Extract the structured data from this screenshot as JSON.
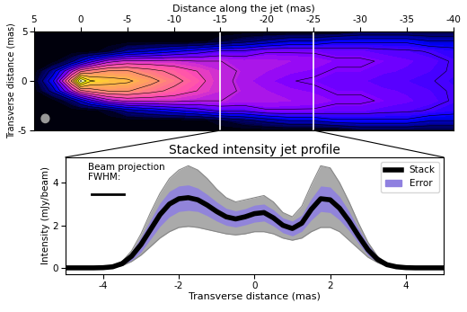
{
  "chart_data": [
    {
      "type": "heatmap",
      "xlabel": "Distance along the jet (mas)",
      "ylabel": "Transverse distance (mas)",
      "x": [
        5,
        3,
        1,
        0,
        -1,
        -3,
        -5,
        -7.5,
        -10,
        -12.5,
        -15,
        -17.5,
        -20,
        -22.5,
        -25,
        -27.5,
        -30,
        -32.5,
        -35,
        -37.5,
        -40
      ],
      "y": [
        -5,
        -4,
        -3,
        -2,
        -1,
        0,
        1,
        2,
        3,
        4,
        5
      ],
      "cells": [
        [
          0,
          0,
          0,
          0,
          0,
          0,
          0,
          0,
          0,
          0,
          0,
          0,
          0,
          0,
          0,
          0,
          0.05,
          0.05,
          0.05,
          0.05,
          0.05
        ],
        [
          0,
          0,
          0,
          0,
          0,
          0,
          0,
          0,
          0,
          0,
          0.05,
          0.1,
          0.15,
          0.2,
          0.2,
          0.25,
          0.25,
          0.25,
          0.25,
          0.2,
          0.2
        ],
        [
          0,
          0,
          0,
          0,
          0,
          0.05,
          0.15,
          0.2,
          0.25,
          0.3,
          0.35,
          0.35,
          0.4,
          0.4,
          0.4,
          0.38,
          0.38,
          0.36,
          0.35,
          0.33,
          0.3
        ],
        [
          0,
          0,
          0.1,
          0.2,
          0.3,
          0.45,
          0.5,
          0.5,
          0.5,
          0.48,
          0.48,
          0.46,
          0.46,
          0.45,
          0.44,
          0.42,
          0.42,
          0.4,
          0.38,
          0.36,
          0.33
        ],
        [
          0,
          0.15,
          0.45,
          0.6,
          0.65,
          0.7,
          0.7,
          0.65,
          0.6,
          0.55,
          0.5,
          0.47,
          0.45,
          0.43,
          0.42,
          0.4,
          0.4,
          0.38,
          0.37,
          0.35,
          0.33
        ],
        [
          0.02,
          0.25,
          0.7,
          1.0,
          0.85,
          0.8,
          0.78,
          0.72,
          0.65,
          0.58,
          0.5,
          0.46,
          0.43,
          0.41,
          0.4,
          0.38,
          0.38,
          0.36,
          0.35,
          0.34,
          0.32
        ],
        [
          0,
          0.15,
          0.45,
          0.6,
          0.65,
          0.7,
          0.7,
          0.65,
          0.6,
          0.55,
          0.5,
          0.47,
          0.45,
          0.43,
          0.42,
          0.4,
          0.4,
          0.38,
          0.37,
          0.35,
          0.33
        ],
        [
          0,
          0,
          0.1,
          0.2,
          0.3,
          0.45,
          0.5,
          0.5,
          0.5,
          0.48,
          0.48,
          0.46,
          0.46,
          0.45,
          0.44,
          0.42,
          0.42,
          0.4,
          0.38,
          0.36,
          0.33
        ],
        [
          0,
          0,
          0,
          0,
          0,
          0.05,
          0.15,
          0.2,
          0.25,
          0.3,
          0.35,
          0.35,
          0.4,
          0.4,
          0.4,
          0.38,
          0.38,
          0.36,
          0.35,
          0.33,
          0.3
        ],
        [
          0,
          0,
          0,
          0,
          0,
          0,
          0,
          0,
          0,
          0,
          0.05,
          0.1,
          0.15,
          0.2,
          0.2,
          0.25,
          0.25,
          0.25,
          0.25,
          0.2,
          0.2
        ],
        [
          0,
          0,
          0,
          0,
          0,
          0,
          0,
          0,
          0,
          0,
          0,
          0,
          0,
          0,
          0,
          0,
          0.05,
          0.05,
          0.05,
          0.05,
          0.05
        ]
      ],
      "xlim": [
        5,
        -40
      ],
      "xticks": [
        5,
        0,
        -5,
        -10,
        -15,
        -20,
        -25,
        -30,
        -35,
        -40
      ],
      "ylim": [
        -5,
        5
      ],
      "yticks": [
        -5,
        0,
        5
      ],
      "beam_fwhm": 0.85,
      "slice": [
        -15,
        -25
      ]
    },
    {
      "type": "line",
      "title": "Stacked intensity jet profile",
      "xlabel": "Transverse distance (mas)",
      "ylabel": "Intensity (mJy/beam)",
      "x": [
        -5,
        -4.75,
        -4.5,
        -4.25,
        -4,
        -3.75,
        -3.5,
        -3.25,
        -3,
        -2.75,
        -2.5,
        -2.25,
        -2,
        -1.75,
        -1.5,
        -1.25,
        -1,
        -0.75,
        -0.5,
        -0.25,
        0,
        0.25,
        0.5,
        0.75,
        1,
        1.25,
        1.5,
        1.75,
        2,
        2.25,
        2.5,
        2.75,
        3,
        3.25,
        3.5,
        3.75,
        4,
        4.25,
        4.5,
        4.75,
        5
      ],
      "series": [
        {
          "name": "Stack",
          "type": "line",
          "color": "#000000",
          "values": [
            0,
            0,
            0,
            0,
            0.01,
            0.05,
            0.2,
            0.55,
            1.1,
            1.8,
            2.5,
            3.0,
            3.25,
            3.3,
            3.2,
            2.95,
            2.65,
            2.4,
            2.3,
            2.4,
            2.55,
            2.6,
            2.35,
            2.0,
            1.85,
            2.1,
            2.75,
            3.25,
            3.2,
            2.8,
            2.2,
            1.5,
            0.85,
            0.4,
            0.15,
            0.05,
            0.01,
            0,
            0,
            0,
            0
          ]
        },
        {
          "name": "Error",
          "type": "band",
          "color": "#8f80e0",
          "values": [
            0,
            0,
            0,
            0,
            0,
            0.02,
            0.08,
            0.2,
            0.35,
            0.45,
            0.55,
            0.6,
            0.6,
            0.6,
            0.55,
            0.5,
            0.45,
            0.4,
            0.38,
            0.38,
            0.4,
            0.4,
            0.38,
            0.35,
            0.35,
            0.38,
            0.5,
            0.6,
            0.6,
            0.55,
            0.45,
            0.35,
            0.25,
            0.15,
            0.06,
            0.02,
            0,
            0,
            0,
            0,
            0
          ]
        }
      ],
      "profiles": [
        [
          0,
          0,
          0,
          0,
          0.02,
          0.1,
          0.3,
          0.8,
          1.6,
          2.6,
          3.5,
          4.2,
          4.6,
          4.8,
          4.6,
          4.2,
          3.7,
          3.3,
          3.1,
          3.2,
          3.3,
          3.4,
          3.1,
          2.6,
          2.4,
          2.9,
          3.9,
          4.8,
          4.7,
          4.0,
          3.1,
          2.1,
          1.2,
          0.55,
          0.2,
          0.06,
          0.01,
          0,
          0,
          0,
          0
        ],
        [
          0,
          0,
          0,
          0,
          0,
          0.02,
          0.1,
          0.3,
          0.6,
          1.0,
          1.4,
          1.7,
          1.9,
          1.95,
          1.9,
          1.8,
          1.7,
          1.6,
          1.55,
          1.6,
          1.7,
          1.7,
          1.6,
          1.4,
          1.3,
          1.4,
          1.7,
          1.9,
          1.9,
          1.7,
          1.3,
          0.9,
          0.5,
          0.25,
          0.08,
          0.02,
          0,
          0,
          0,
          0,
          0
        ]
      ],
      "annotation": {
        "text": "Beam projection\nFWHM:",
        "beam_fwhm": 0.85
      },
      "xlim": [
        -5,
        5
      ],
      "xticks": [
        -4,
        -2,
        0,
        2,
        4
      ],
      "ylim": [
        -0.3,
        5.2
      ],
      "yticks": [
        0,
        2,
        4
      ],
      "legend": "upper right"
    }
  ]
}
